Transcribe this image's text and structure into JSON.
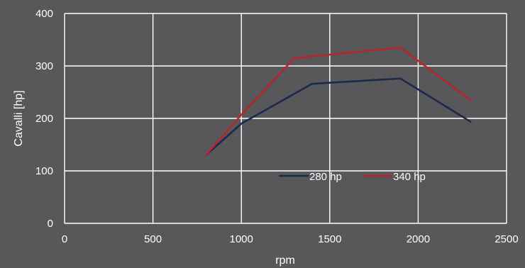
{
  "chart_data": {
    "type": "line",
    "xlabel": "rpm",
    "ylabel": "Cavalli [hp]",
    "xlim": [
      0,
      2500
    ],
    "ylim": [
      0,
      400
    ],
    "xticks": [
      0,
      500,
      1000,
      1500,
      2000,
      2500
    ],
    "yticks": [
      0,
      100,
      200,
      300,
      400
    ],
    "grid": true,
    "legend": "inside-center-right",
    "series": [
      {
        "name": "280 hp",
        "color": "#1b2a4a",
        "x": [
          800,
          1000,
          1400,
          1900,
          2300
        ],
        "y": [
          130,
          190,
          266,
          276,
          193
        ]
      },
      {
        "name": "340 hp",
        "color": "#b5262d",
        "x": [
          800,
          1000,
          1300,
          1900,
          2300
        ],
        "y": [
          130,
          207,
          315,
          335,
          234
        ]
      }
    ]
  }
}
